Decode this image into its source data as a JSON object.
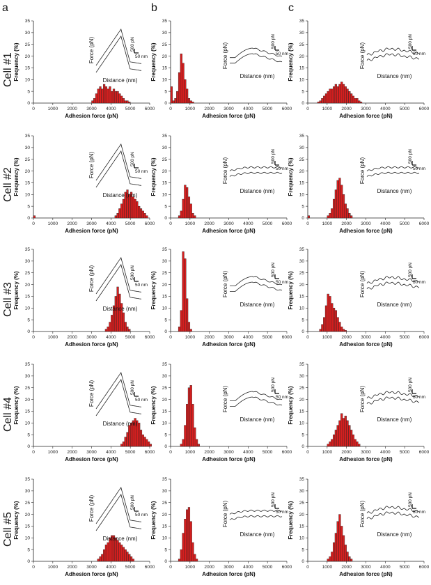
{
  "figure": {
    "column_labels": [
      "a",
      "b",
      "c"
    ],
    "row_labels": [
      "Cell #1",
      "Cell #2",
      "Cell #3",
      "Cell #4",
      "Cell #5"
    ]
  },
  "inset_labels": {
    "force_axis": "Force (pN)",
    "distance_axis": "Distance (nm)",
    "force_scale": "500 pN",
    "distance_scale": "50 nm"
  },
  "colors": {
    "bar_fill": "#d81f1f",
    "axis": "#222222"
  },
  "chart_data": [
    {
      "type": "bar",
      "row": 0,
      "col": 0,
      "xlabel": "Adhesion force (pN)",
      "ylabel": "Frequency (%)",
      "xlim": [
        0,
        6000
      ],
      "ylim": [
        0,
        35
      ],
      "xticks": [
        0,
        1000,
        2000,
        3000,
        4000,
        5000,
        6000
      ],
      "yticks": [
        0,
        5,
        10,
        15,
        20,
        25,
        30,
        35
      ],
      "bin_width": 100,
      "bin_start": 3000,
      "values": [
        1,
        2,
        4,
        6,
        7,
        6,
        8,
        7,
        6,
        7,
        5,
        6,
        5,
        5,
        4,
        3,
        2,
        1,
        1,
        0.5
      ],
      "inset": {
        "shape": "sharp"
      }
    },
    {
      "type": "bar",
      "row": 0,
      "col": 1,
      "xlabel": "Adhesion force (pN)",
      "ylabel": "Frequency (%)",
      "xlim": [
        0,
        6000
      ],
      "ylim": [
        0,
        35
      ],
      "xticks": [
        0,
        1000,
        2000,
        3000,
        4000,
        5000,
        6000
      ],
      "yticks": [
        0,
        5,
        10,
        15,
        20,
        25,
        30,
        35
      ],
      "bin_width": 100,
      "bin_start": 0,
      "values": [
        7,
        1,
        2,
        5,
        13,
        21,
        17,
        10,
        6,
        2,
        1,
        0.5
      ],
      "inset": {
        "shape": "rounded"
      }
    },
    {
      "type": "bar",
      "row": 0,
      "col": 2,
      "xlabel": "Adhesion force (pN)",
      "ylabel": "Frequency (%)",
      "xlim": [
        0,
        6000
      ],
      "ylim": [
        0,
        35
      ],
      "xticks": [
        0,
        1000,
        2000,
        3000,
        4000,
        5000,
        6000
      ],
      "yticks": [
        0,
        5,
        10,
        15,
        20,
        25,
        30,
        35
      ],
      "bin_width": 100,
      "bin_start": 500,
      "values": [
        0.5,
        1,
        2,
        3,
        4,
        5,
        6,
        6,
        7,
        8,
        7,
        8,
        9,
        8,
        7,
        6,
        5,
        4,
        3,
        2,
        2,
        1,
        0.5
      ],
      "inset": {
        "shape": "noisy"
      }
    },
    {
      "type": "bar",
      "row": 1,
      "col": 0,
      "xlabel": "Adhesion force (pN)",
      "ylabel": "Frequency (%)",
      "xlim": [
        0,
        6000
      ],
      "ylim": [
        0,
        35
      ],
      "xticks": [
        0,
        1000,
        2000,
        3000,
        4000,
        5000,
        6000
      ],
      "yticks": [
        0,
        5,
        10,
        15,
        20,
        25,
        30,
        35
      ],
      "bin_width": 100,
      "bin_start": 4200,
      "values": [
        1,
        2,
        4,
        6,
        8,
        11,
        12,
        10,
        11,
        9,
        8,
        7,
        5,
        4,
        3,
        2,
        1
      ],
      "extra": [
        {
          "x": 0,
          "v": 1
        }
      ],
      "inset": {
        "shape": "sharp"
      }
    },
    {
      "type": "bar",
      "row": 1,
      "col": 1,
      "xlabel": "Adhesion force (pN)",
      "ylabel": "Frequency (%)",
      "xlim": [
        0,
        6000
      ],
      "ylim": [
        0,
        35
      ],
      "xticks": [
        0,
        1000,
        2000,
        3000,
        4000,
        5000,
        6000
      ],
      "yticks": [
        0,
        5,
        10,
        15,
        20,
        25,
        30,
        35
      ],
      "bin_width": 100,
      "bin_start": 400,
      "values": [
        1,
        3,
        8,
        14,
        13,
        9,
        6,
        2,
        1
      ],
      "inset": {
        "shape": "flat"
      }
    },
    {
      "type": "bar",
      "row": 1,
      "col": 2,
      "xlabel": "Adhesion force (pN)",
      "ylabel": "Frequency (%)",
      "xlim": [
        0,
        6000
      ],
      "ylim": [
        0,
        35
      ],
      "xticks": [
        0,
        1000,
        2000,
        3000,
        4000,
        5000,
        6000
      ],
      "yticks": [
        0,
        5,
        10,
        15,
        20,
        25,
        30,
        35
      ],
      "bin_width": 100,
      "bin_start": 1000,
      "values": [
        1,
        2,
        4,
        8,
        12,
        16,
        17,
        14,
        10,
        6,
        4,
        2,
        1
      ],
      "extra": [
        {
          "x": 0,
          "v": 1
        }
      ],
      "inset": {
        "shape": "flat"
      }
    },
    {
      "type": "bar",
      "row": 2,
      "col": 0,
      "xlabel": "Adhesion force (pN)",
      "ylabel": "Frequency (%)",
      "xlim": [
        0,
        6000
      ],
      "ylim": [
        0,
        35
      ],
      "xticks": [
        0,
        1000,
        2000,
        3000,
        4000,
        5000,
        6000
      ],
      "yticks": [
        0,
        5,
        10,
        15,
        20,
        25,
        30,
        35
      ],
      "bin_width": 100,
      "bin_start": 3700,
      "values": [
        1,
        2,
        4,
        7,
        11,
        15,
        19,
        16,
        12,
        8,
        4,
        2,
        1
      ],
      "inset": {
        "shape": "sharp"
      }
    },
    {
      "type": "bar",
      "row": 2,
      "col": 1,
      "xlabel": "Adhesion force (pN)",
      "ylabel": "Frequency (%)",
      "xlim": [
        0,
        6000
      ],
      "ylim": [
        0,
        35
      ],
      "xticks": [
        0,
        1000,
        2000,
        3000,
        4000,
        5000,
        6000
      ],
      "yticks": [
        0,
        5,
        10,
        15,
        20,
        25,
        30,
        35
      ],
      "bin_width": 100,
      "bin_start": 400,
      "values": [
        2,
        9,
        34,
        31,
        14,
        4,
        1
      ],
      "inset": {
        "shape": "rounded"
      }
    },
    {
      "type": "bar",
      "row": 2,
      "col": 2,
      "xlabel": "Adhesion force (pN)",
      "ylabel": "Frequency (%)",
      "xlim": [
        0,
        6000
      ],
      "ylim": [
        0,
        35
      ],
      "xticks": [
        0,
        1000,
        2000,
        3000,
        4000,
        5000,
        6000
      ],
      "yticks": [
        0,
        5,
        10,
        15,
        20,
        25,
        30,
        35
      ],
      "bin_width": 100,
      "bin_start": 600,
      "values": [
        1,
        3,
        6,
        11,
        16,
        15,
        12,
        10,
        9,
        6,
        4,
        2,
        1,
        0.5
      ],
      "inset": {
        "shape": "noisy"
      }
    },
    {
      "type": "bar",
      "row": 3,
      "col": 0,
      "xlabel": "Adhesion force (pN)",
      "ylabel": "Frequency (%)",
      "xlim": [
        0,
        6000
      ],
      "ylim": [
        0,
        35
      ],
      "xticks": [
        0,
        1000,
        2000,
        3000,
        4000,
        5000,
        6000
      ],
      "yticks": [
        0,
        5,
        10,
        15,
        20,
        25,
        30,
        35
      ],
      "bin_width": 100,
      "bin_start": 4500,
      "values": [
        1,
        2,
        4,
        6,
        9,
        10,
        11,
        12,
        11,
        10,
        7,
        5,
        4,
        3,
        2,
        1
      ],
      "inset": {
        "shape": "sharp"
      }
    },
    {
      "type": "bar",
      "row": 3,
      "col": 1,
      "xlabel": "Adhesion force (pN)",
      "ylabel": "Frequency (%)",
      "xlim": [
        0,
        6000
      ],
      "ylim": [
        0,
        35
      ],
      "xticks": [
        0,
        1000,
        2000,
        3000,
        4000,
        5000,
        6000
      ],
      "yticks": [
        0,
        5,
        10,
        15,
        20,
        25,
        30,
        35
      ],
      "bin_width": 100,
      "bin_start": 500,
      "values": [
        1,
        3,
        9,
        18,
        25,
        26,
        18,
        8,
        3,
        1
      ],
      "inset": {
        "shape": "rounded"
      }
    },
    {
      "type": "bar",
      "row": 3,
      "col": 2,
      "xlabel": "Adhesion force (pN)",
      "ylabel": "Frequency (%)",
      "xlim": [
        0,
        6000
      ],
      "ylim": [
        0,
        35
      ],
      "xticks": [
        0,
        1000,
        2000,
        3000,
        4000,
        5000,
        6000
      ],
      "yticks": [
        0,
        5,
        10,
        15,
        20,
        25,
        30,
        35
      ],
      "bin_width": 100,
      "bin_start": 1000,
      "values": [
        1,
        2,
        3,
        5,
        7,
        9,
        11,
        14,
        12,
        13,
        11,
        9,
        7,
        5,
        3,
        2,
        1
      ],
      "inset": {
        "shape": "noisy"
      }
    },
    {
      "type": "bar",
      "row": 4,
      "col": 0,
      "xlabel": "Adhesion force (pN)",
      "ylabel": "Frequency (%)",
      "xlim": [
        0,
        6000
      ],
      "ylim": [
        0,
        35
      ],
      "xticks": [
        0,
        1000,
        2000,
        3000,
        4000,
        5000,
        6000
      ],
      "yticks": [
        0,
        5,
        10,
        15,
        20,
        25,
        30,
        35
      ],
      "bin_width": 100,
      "bin_start": 3300,
      "values": [
        1,
        2,
        3,
        5,
        7,
        8,
        10,
        11,
        11,
        10,
        9,
        8,
        7,
        6,
        5,
        4,
        3,
        2,
        1
      ],
      "inset": {
        "shape": "sharp"
      }
    },
    {
      "type": "bar",
      "row": 4,
      "col": 1,
      "xlabel": "Adhesion force (pN)",
      "ylabel": "Frequency (%)",
      "xlim": [
        0,
        6000
      ],
      "ylim": [
        0,
        35
      ],
      "xticks": [
        0,
        1000,
        2000,
        3000,
        4000,
        5000,
        6000
      ],
      "yticks": [
        0,
        5,
        10,
        15,
        20,
        25,
        30,
        35
      ],
      "bin_width": 100,
      "bin_start": 400,
      "values": [
        1,
        5,
        12,
        18,
        22,
        23,
        17,
        8,
        3,
        1
      ],
      "inset": {
        "shape": "flat"
      }
    },
    {
      "type": "bar",
      "row": 4,
      "col": 2,
      "xlabel": "Adhesion force (pN)",
      "ylabel": "Frequency (%)",
      "xlim": [
        0,
        6000
      ],
      "ylim": [
        0,
        35
      ],
      "xticks": [
        0,
        1000,
        2000,
        3000,
        4000,
        5000,
        6000
      ],
      "yticks": [
        0,
        5,
        10,
        15,
        20,
        25,
        30,
        35
      ],
      "bin_width": 100,
      "bin_start": 1000,
      "values": [
        1,
        2,
        4,
        8,
        12,
        17,
        20,
        15,
        11,
        7,
        4,
        2,
        1
      ],
      "inset": {
        "shape": "noisy"
      }
    }
  ]
}
